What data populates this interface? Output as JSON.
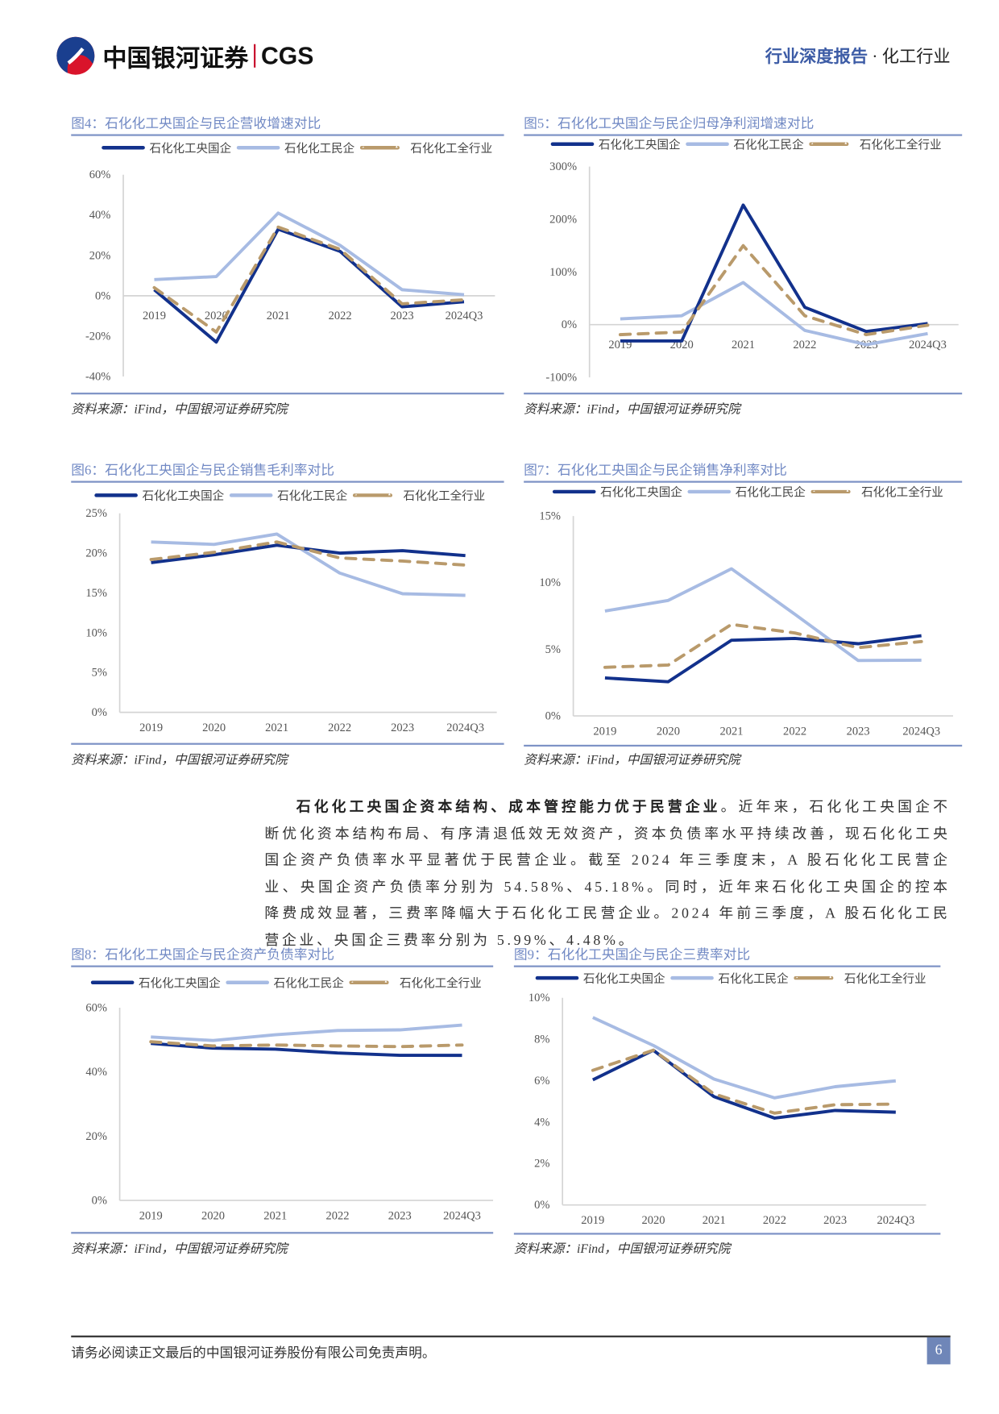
{
  "header": {
    "logo_cn": "中国银河证券",
    "logo_en": "CGS",
    "report_type": "行业深度报告",
    "separator": "·",
    "industry": "化工行业"
  },
  "legend": {
    "central": "石化化工央国企",
    "private": "石化化工民企",
    "industry": "石化化工全行业"
  },
  "colors": {
    "central": "#12318c",
    "private": "#a7bbe3",
    "industry": "#b99a6b",
    "accent": "#7189c4"
  },
  "source": "资料来源：iFind，中国银河证券研究院",
  "chart_data": [
    {
      "type": "line",
      "title": "图4：石化化工央国企与民企营收增速对比",
      "categories": [
        "2019",
        "2020",
        "2021",
        "2022",
        "2023",
        "2024Q3"
      ],
      "ylim": [
        -40,
        60
      ],
      "yticks": [
        "-40%",
        "-20%",
        "0%",
        "20%",
        "40%",
        "60%"
      ],
      "ytick_values": [
        -40,
        -20,
        0,
        20,
        40,
        60
      ],
      "xlabels_at_zero": true,
      "series": [
        {
          "name": "石化化工央国企",
          "values": [
            3,
            -23,
            33,
            22,
            -5.5,
            -3
          ]
        },
        {
          "name": "石化化工民企",
          "values": [
            8,
            9.5,
            41,
            25,
            3,
            0.5
          ]
        },
        {
          "name": "石化化工全行业",
          "values": [
            4,
            -18,
            34,
            23,
            -4,
            -2
          ]
        }
      ]
    },
    {
      "type": "line",
      "title": "图5：石化化工央国企与民企归母净利润增速对比",
      "categories": [
        "2019",
        "2020",
        "2021",
        "2022",
        "2023",
        "2024Q3"
      ],
      "ylim": [
        -100,
        300
      ],
      "yticks": [
        "-100%",
        "0%",
        "100%",
        "200%",
        "300%"
      ],
      "ytick_values": [
        -100,
        0,
        100,
        200,
        300
      ],
      "xlabels_at_zero": true,
      "series": [
        {
          "name": "石化化工央国企",
          "values": [
            -31,
            -31,
            227,
            33,
            -13,
            2
          ]
        },
        {
          "name": "石化化工民企",
          "values": [
            11,
            17,
            80,
            -11,
            -38,
            -17
          ]
        },
        {
          "name": "石化化工全行业",
          "values": [
            -19,
            -14,
            150,
            17,
            -19,
            -1
          ]
        }
      ]
    },
    {
      "type": "line",
      "title": "图6：石化化工央国企与民企销售毛利率对比",
      "categories": [
        "2019",
        "2020",
        "2021",
        "2022",
        "2023",
        "2024Q3"
      ],
      "ylim": [
        0,
        25
      ],
      "yticks": [
        "0%",
        "5%",
        "10%",
        "15%",
        "20%",
        "25%"
      ],
      "ytick_values": [
        0,
        5,
        10,
        15,
        20,
        25
      ],
      "xlabels_at_zero": false,
      "series": [
        {
          "name": "石化化工央国企",
          "values": [
            18.8,
            19.8,
            21.0,
            20.0,
            20.3,
            19.7
          ]
        },
        {
          "name": "石化化工民企",
          "values": [
            21.4,
            21.1,
            22.4,
            17.5,
            14.9,
            14.7
          ]
        },
        {
          "name": "石化化工全行业",
          "values": [
            19.2,
            20.1,
            21.4,
            19.4,
            19.0,
            18.5
          ]
        }
      ]
    },
    {
      "type": "line",
      "title": "图7：石化化工央国企与民企销售净利率对比",
      "categories": [
        "2019",
        "2020",
        "2021",
        "2022",
        "2023",
        "2024Q3"
      ],
      "ylim": [
        0,
        15
      ],
      "yticks": [
        "0%",
        "5%",
        "10%",
        "15%"
      ],
      "ytick_values": [
        0,
        5,
        10,
        15
      ],
      "xlabels_at_zero": false,
      "series": [
        {
          "name": "石化化工央国企",
          "values": [
            2.85,
            2.57,
            5.68,
            5.82,
            5.42,
            6.02
          ]
        },
        {
          "name": "石化化工民企",
          "values": [
            7.87,
            8.67,
            11.04,
            7.63,
            4.16,
            4.18
          ]
        },
        {
          "name": "石化化工全行业",
          "values": [
            3.65,
            3.82,
            6.87,
            6.22,
            5.12,
            5.58
          ]
        }
      ]
    },
    {
      "type": "line",
      "title": "图8：石化化工央国企与民企资产负债率对比",
      "categories": [
        "2019",
        "2020",
        "2021",
        "2022",
        "2023",
        "2024Q3"
      ],
      "ylim": [
        0,
        60
      ],
      "yticks": [
        "0%",
        "20%",
        "40%",
        "60%"
      ],
      "ytick_values": [
        0,
        20,
        40,
        60
      ],
      "xlabels_at_zero": false,
      "series": [
        {
          "name": "石化化工央国企",
          "values": [
            48.9,
            47.4,
            47.1,
            45.9,
            45.2,
            45.18
          ]
        },
        {
          "name": "石化化工民企",
          "values": [
            50.9,
            49.8,
            51.6,
            52.9,
            53.1,
            54.58
          ]
        },
        {
          "name": "石化化工全行业",
          "values": [
            49.4,
            48.1,
            48.4,
            48.1,
            47.9,
            48.4
          ]
        }
      ]
    },
    {
      "type": "line",
      "title": "图9：石化化工央国企与民企三费率对比",
      "categories": [
        "2019",
        "2020",
        "2021",
        "2022",
        "2023",
        "2024Q3"
      ],
      "ylim": [
        0,
        10
      ],
      "yticks": [
        "0%",
        "2%",
        "4%",
        "6%",
        "8%",
        "10%"
      ],
      "ytick_values": [
        0,
        2,
        4,
        6,
        8,
        10
      ],
      "xlabels_at_zero": false,
      "series": [
        {
          "name": "石化化工央国企",
          "values": [
            6.04,
            7.47,
            5.23,
            4.19,
            4.56,
            4.48
          ]
        },
        {
          "name": "石化化工民企",
          "values": [
            9.05,
            7.7,
            6.08,
            5.17,
            5.71,
            5.99
          ]
        },
        {
          "name": "石化化工全行业",
          "values": [
            6.5,
            7.47,
            5.36,
            4.43,
            4.84,
            4.87
          ]
        }
      ]
    }
  ],
  "paragraph": {
    "lead": "石化化工央国企资本结构、成本管控能力优于民营企业",
    "body": "。近年来，石化化工央国企不断优化资本结构布局、有序清退低效无效资产，资本负债率水平持续改善，现石化化工央国企资产负债率水平显著优于民营企业。截至 2024 年三季度末，A 股石化化工民营企业、央国企资产负债率分别为 54.58%、45.18%。同时，近年来石化化工央国企的控本降费成效显著，三费率降幅大于石化化工民营企业。2024 年前三季度，A 股石化化工民营企业、央国企三费率分别为 5.99%、4.48%。"
  },
  "footer": {
    "disclaimer": "请务必阅读正文最后的中国银河证券股份有限公司免责声明。",
    "page_number": "6"
  }
}
